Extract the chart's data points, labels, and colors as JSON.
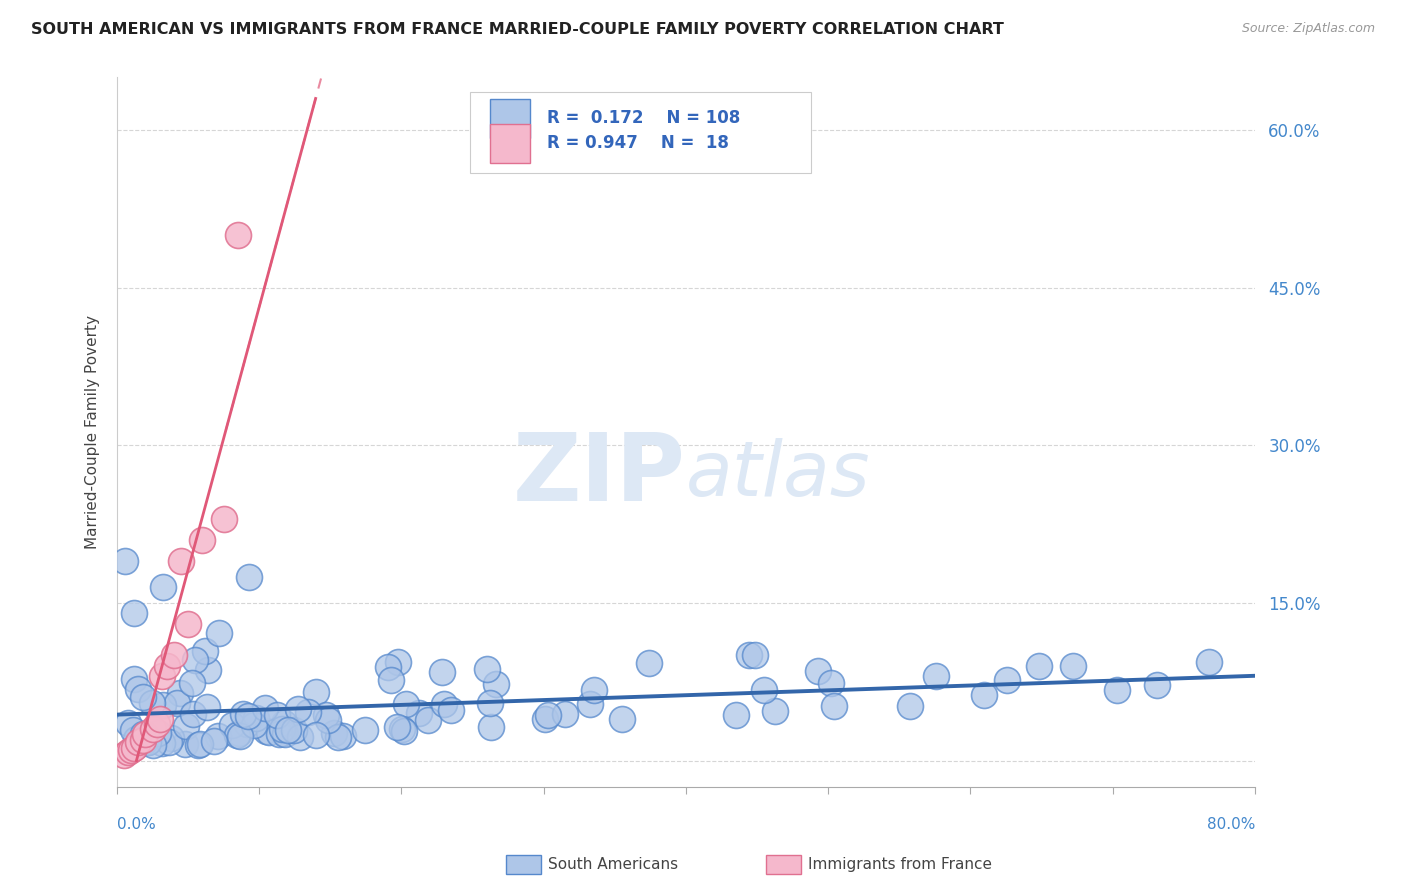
{
  "title": "SOUTH AMERICAN VS IMMIGRANTS FROM FRANCE MARRIED-COUPLE FAMILY POVERTY CORRELATION CHART",
  "source": "Source: ZipAtlas.com",
  "ylabel": "Married-Couple Family Poverty",
  "yaxis_ticks": [
    0.0,
    0.15,
    0.3,
    0.45,
    0.6
  ],
  "xmin": 0.0,
  "xmax": 0.8,
  "ymin": -0.025,
  "ymax": 0.65,
  "series1_color": "#aec6e8",
  "series1_edge": "#5588cc",
  "series1_line_color": "#3366aa",
  "series1_label": "South Americans",
  "series1_R": 0.172,
  "series1_N": 108,
  "series2_color": "#f5b8cc",
  "series2_edge": "#e07090",
  "series2_line_color": "#e05878",
  "series2_label": "Immigrants from France",
  "series2_R": 0.947,
  "series2_N": 18,
  "watermark_zip": "ZIP",
  "watermark_atlas": "atlas",
  "bg_color": "#ffffff",
  "grid_color": "#cccccc",
  "title_color": "#222222",
  "axis_label_color": "#4488cc",
  "legend_text_color": "#3366bb"
}
